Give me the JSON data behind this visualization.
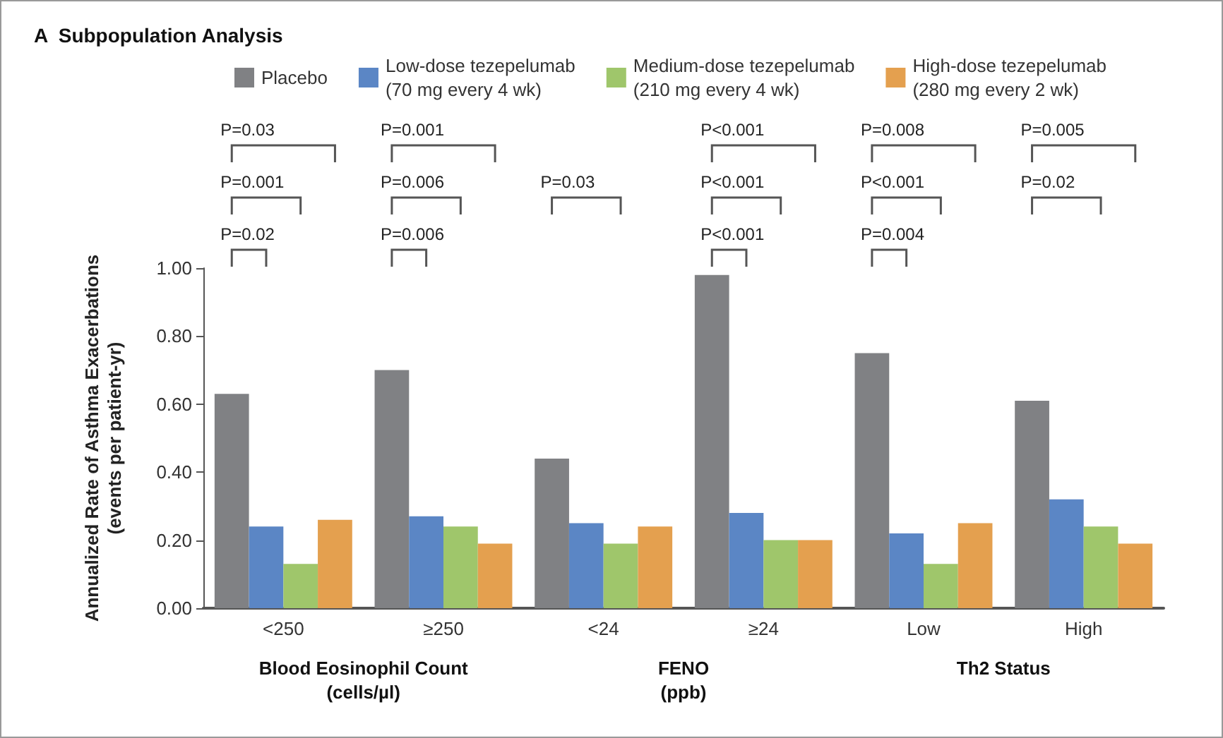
{
  "chart_data": {
    "type": "bar",
    "title": "A  Subpopulation Analysis",
    "ylabel": "Annualized Rate of Asthma Exacerbations\n(events per patient-yr)",
    "categories": [
      "<250",
      "≥250",
      "<24",
      "≥24",
      "Low",
      "High"
    ],
    "series": [
      {
        "name": "Placebo",
        "color": "#808184",
        "values": [
          0.63,
          0.7,
          0.44,
          0.98,
          0.75,
          0.61
        ]
      },
      {
        "name": "Low-dose tezepelumab\n(70 mg every 4 wk)",
        "color": "#5b86c5",
        "values": [
          0.24,
          0.27,
          0.25,
          0.28,
          0.22,
          0.32
        ]
      },
      {
        "name": "Medium-dose tezepelumab\n(210 mg every 4 wk)",
        "color": "#9fc66b",
        "values": [
          0.13,
          0.24,
          0.19,
          0.2,
          0.13,
          0.24
        ]
      },
      {
        "name": "High-dose tezepelumab\n(280 mg every 2 wk)",
        "color": "#e4a04f",
        "values": [
          0.26,
          0.19,
          0.24,
          0.2,
          0.25,
          0.19
        ]
      }
    ],
    "ylim": [
      0,
      1
    ],
    "yticks": [
      {
        "value": 0,
        "label": "0.00"
      },
      {
        "value": 0.2,
        "label": "0.20"
      },
      {
        "value": 0.4,
        "label": "0.40"
      },
      {
        "value": 0.6,
        "label": "0.60"
      },
      {
        "value": 0.8,
        "label": "0.80"
      },
      {
        "value": 1,
        "label": "1.00"
      }
    ],
    "legend": "top",
    "annotations": [
      "P=0.02",
      "P=0.001",
      "P=0.03",
      "P=0.006",
      "P=0.006",
      "P=0.001",
      "P=0.03",
      "P<0.001",
      "P<0.001",
      "P<0.001",
      "P=0.004",
      "P<0.001",
      "P=0.008",
      "P=0.02",
      "P=0.005",
      "Blood Eosinophil Count\n(cells/µl)",
      "FENO\n(ppb)",
      "Th2 Status"
    ]
  }
}
